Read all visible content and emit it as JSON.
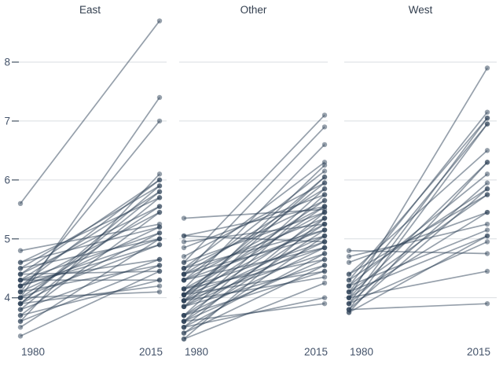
{
  "chart_data": {
    "type": "line",
    "subtype": "slopegraph",
    "title": "",
    "years": [
      "1980",
      "2015"
    ],
    "yticks": [
      8,
      7,
      6,
      5,
      4
    ],
    "ylim": [
      3.2,
      8.8
    ],
    "grid": true,
    "legend": "none",
    "pair_format": "[value_1980, value_2015]",
    "facets": [
      {
        "title": "East",
        "pairs": [
          [
            5.6,
            8.7
          ],
          [
            4.0,
            7.4
          ],
          [
            4.1,
            7.0
          ],
          [
            3.6,
            6.1
          ],
          [
            4.4,
            6.0
          ],
          [
            4.2,
            6.0
          ],
          [
            4.5,
            5.9
          ],
          [
            3.9,
            5.9
          ],
          [
            3.9,
            5.8
          ],
          [
            4.3,
            5.8
          ],
          [
            4.6,
            5.7
          ],
          [
            3.8,
            5.7
          ],
          [
            4.0,
            5.55
          ],
          [
            4.4,
            5.55
          ],
          [
            4.2,
            5.45
          ],
          [
            3.7,
            5.45
          ],
          [
            4.6,
            5.2
          ],
          [
            4.1,
            5.2
          ],
          [
            4.8,
            5.25
          ],
          [
            3.9,
            5.1
          ],
          [
            4.3,
            5.1
          ],
          [
            4.5,
            5.0
          ],
          [
            3.5,
            5.0
          ],
          [
            4.2,
            5.0
          ],
          [
            4.2,
            4.9
          ],
          [
            4.0,
            4.9
          ],
          [
            4.3,
            4.65
          ],
          [
            3.8,
            4.65
          ],
          [
            4.1,
            4.55
          ],
          [
            3.6,
            4.55
          ],
          [
            4.4,
            4.45
          ],
          [
            3.35,
            4.45
          ],
          [
            4.3,
            4.3
          ],
          [
            3.7,
            4.3
          ],
          [
            3.9,
            4.2
          ],
          [
            4.0,
            4.1
          ]
        ]
      },
      {
        "title": "Other",
        "pairs": [
          [
            4.6,
            7.1
          ],
          [
            4.4,
            6.9
          ],
          [
            4.15,
            6.6
          ],
          [
            4.5,
            6.3
          ],
          [
            3.95,
            6.25
          ],
          [
            4.3,
            6.15
          ],
          [
            3.85,
            6.05
          ],
          [
            4.05,
            6.05
          ],
          [
            5.35,
            5.5
          ],
          [
            4.05,
            5.95
          ],
          [
            4.7,
            5.95
          ],
          [
            3.7,
            5.85
          ],
          [
            4.4,
            5.85
          ],
          [
            4.85,
            5.75
          ],
          [
            3.6,
            5.75
          ],
          [
            4.05,
            5.65
          ],
          [
            4.5,
            5.65
          ],
          [
            3.95,
            5.55
          ],
          [
            4.3,
            5.55
          ],
          [
            5.05,
            5.55
          ],
          [
            3.5,
            5.45
          ],
          [
            4.15,
            5.45
          ],
          [
            4.6,
            5.45
          ],
          [
            3.85,
            5.35
          ],
          [
            4.4,
            5.35
          ],
          [
            3.3,
            5.35
          ],
          [
            4.05,
            5.25
          ],
          [
            3.7,
            5.25
          ],
          [
            4.95,
            5.25
          ],
          [
            3.6,
            5.15
          ],
          [
            4.3,
            5.15
          ],
          [
            4.5,
            5.15
          ],
          [
            3.95,
            5.05
          ],
          [
            4.4,
            5.05
          ],
          [
            3.4,
            5.05
          ],
          [
            4.15,
            4.95
          ],
          [
            3.85,
            4.95
          ],
          [
            5.05,
            4.95
          ],
          [
            3.7,
            4.85
          ],
          [
            4.05,
            4.85
          ],
          [
            4.3,
            4.85
          ],
          [
            3.5,
            4.75
          ],
          [
            3.95,
            4.75
          ],
          [
            3.6,
            4.65
          ],
          [
            4.15,
            4.65
          ],
          [
            3.85,
            4.55
          ],
          [
            3.4,
            4.55
          ],
          [
            4.05,
            4.45
          ],
          [
            3.7,
            4.45
          ],
          [
            3.95,
            4.35
          ],
          [
            3.3,
            4.25
          ],
          [
            3.5,
            4.0
          ],
          [
            3.6,
            3.9
          ]
        ]
      },
      {
        "title": "West",
        "pairs": [
          [
            4.0,
            7.9
          ],
          [
            4.2,
            7.15
          ],
          [
            3.9,
            7.05
          ],
          [
            4.3,
            7.05
          ],
          [
            4.1,
            6.95
          ],
          [
            3.8,
            6.95
          ],
          [
            4.4,
            6.5
          ],
          [
            3.75,
            6.3
          ],
          [
            4.0,
            6.3
          ],
          [
            4.2,
            6.1
          ],
          [
            3.9,
            5.95
          ],
          [
            4.3,
            5.85
          ],
          [
            3.8,
            5.85
          ],
          [
            4.1,
            5.75
          ],
          [
            4.4,
            5.75
          ],
          [
            4.6,
            5.45
          ],
          [
            4.0,
            5.45
          ],
          [
            4.7,
            5.25
          ],
          [
            4.2,
            5.15
          ],
          [
            3.75,
            5.05
          ],
          [
            4.1,
            5.05
          ],
          [
            3.9,
            4.95
          ],
          [
            4.8,
            4.75
          ],
          [
            4.0,
            4.45
          ],
          [
            3.8,
            3.9
          ]
        ]
      }
    ],
    "colors": {
      "series": "#2d4257",
      "series_opacity": 0.5,
      "grid": "#d9dde1",
      "tick_mark": "#5f6b79",
      "tick_text": "#44536a",
      "axis_text": "#44536a",
      "title_text": "#333f4f",
      "background": "#ffffff"
    }
  }
}
